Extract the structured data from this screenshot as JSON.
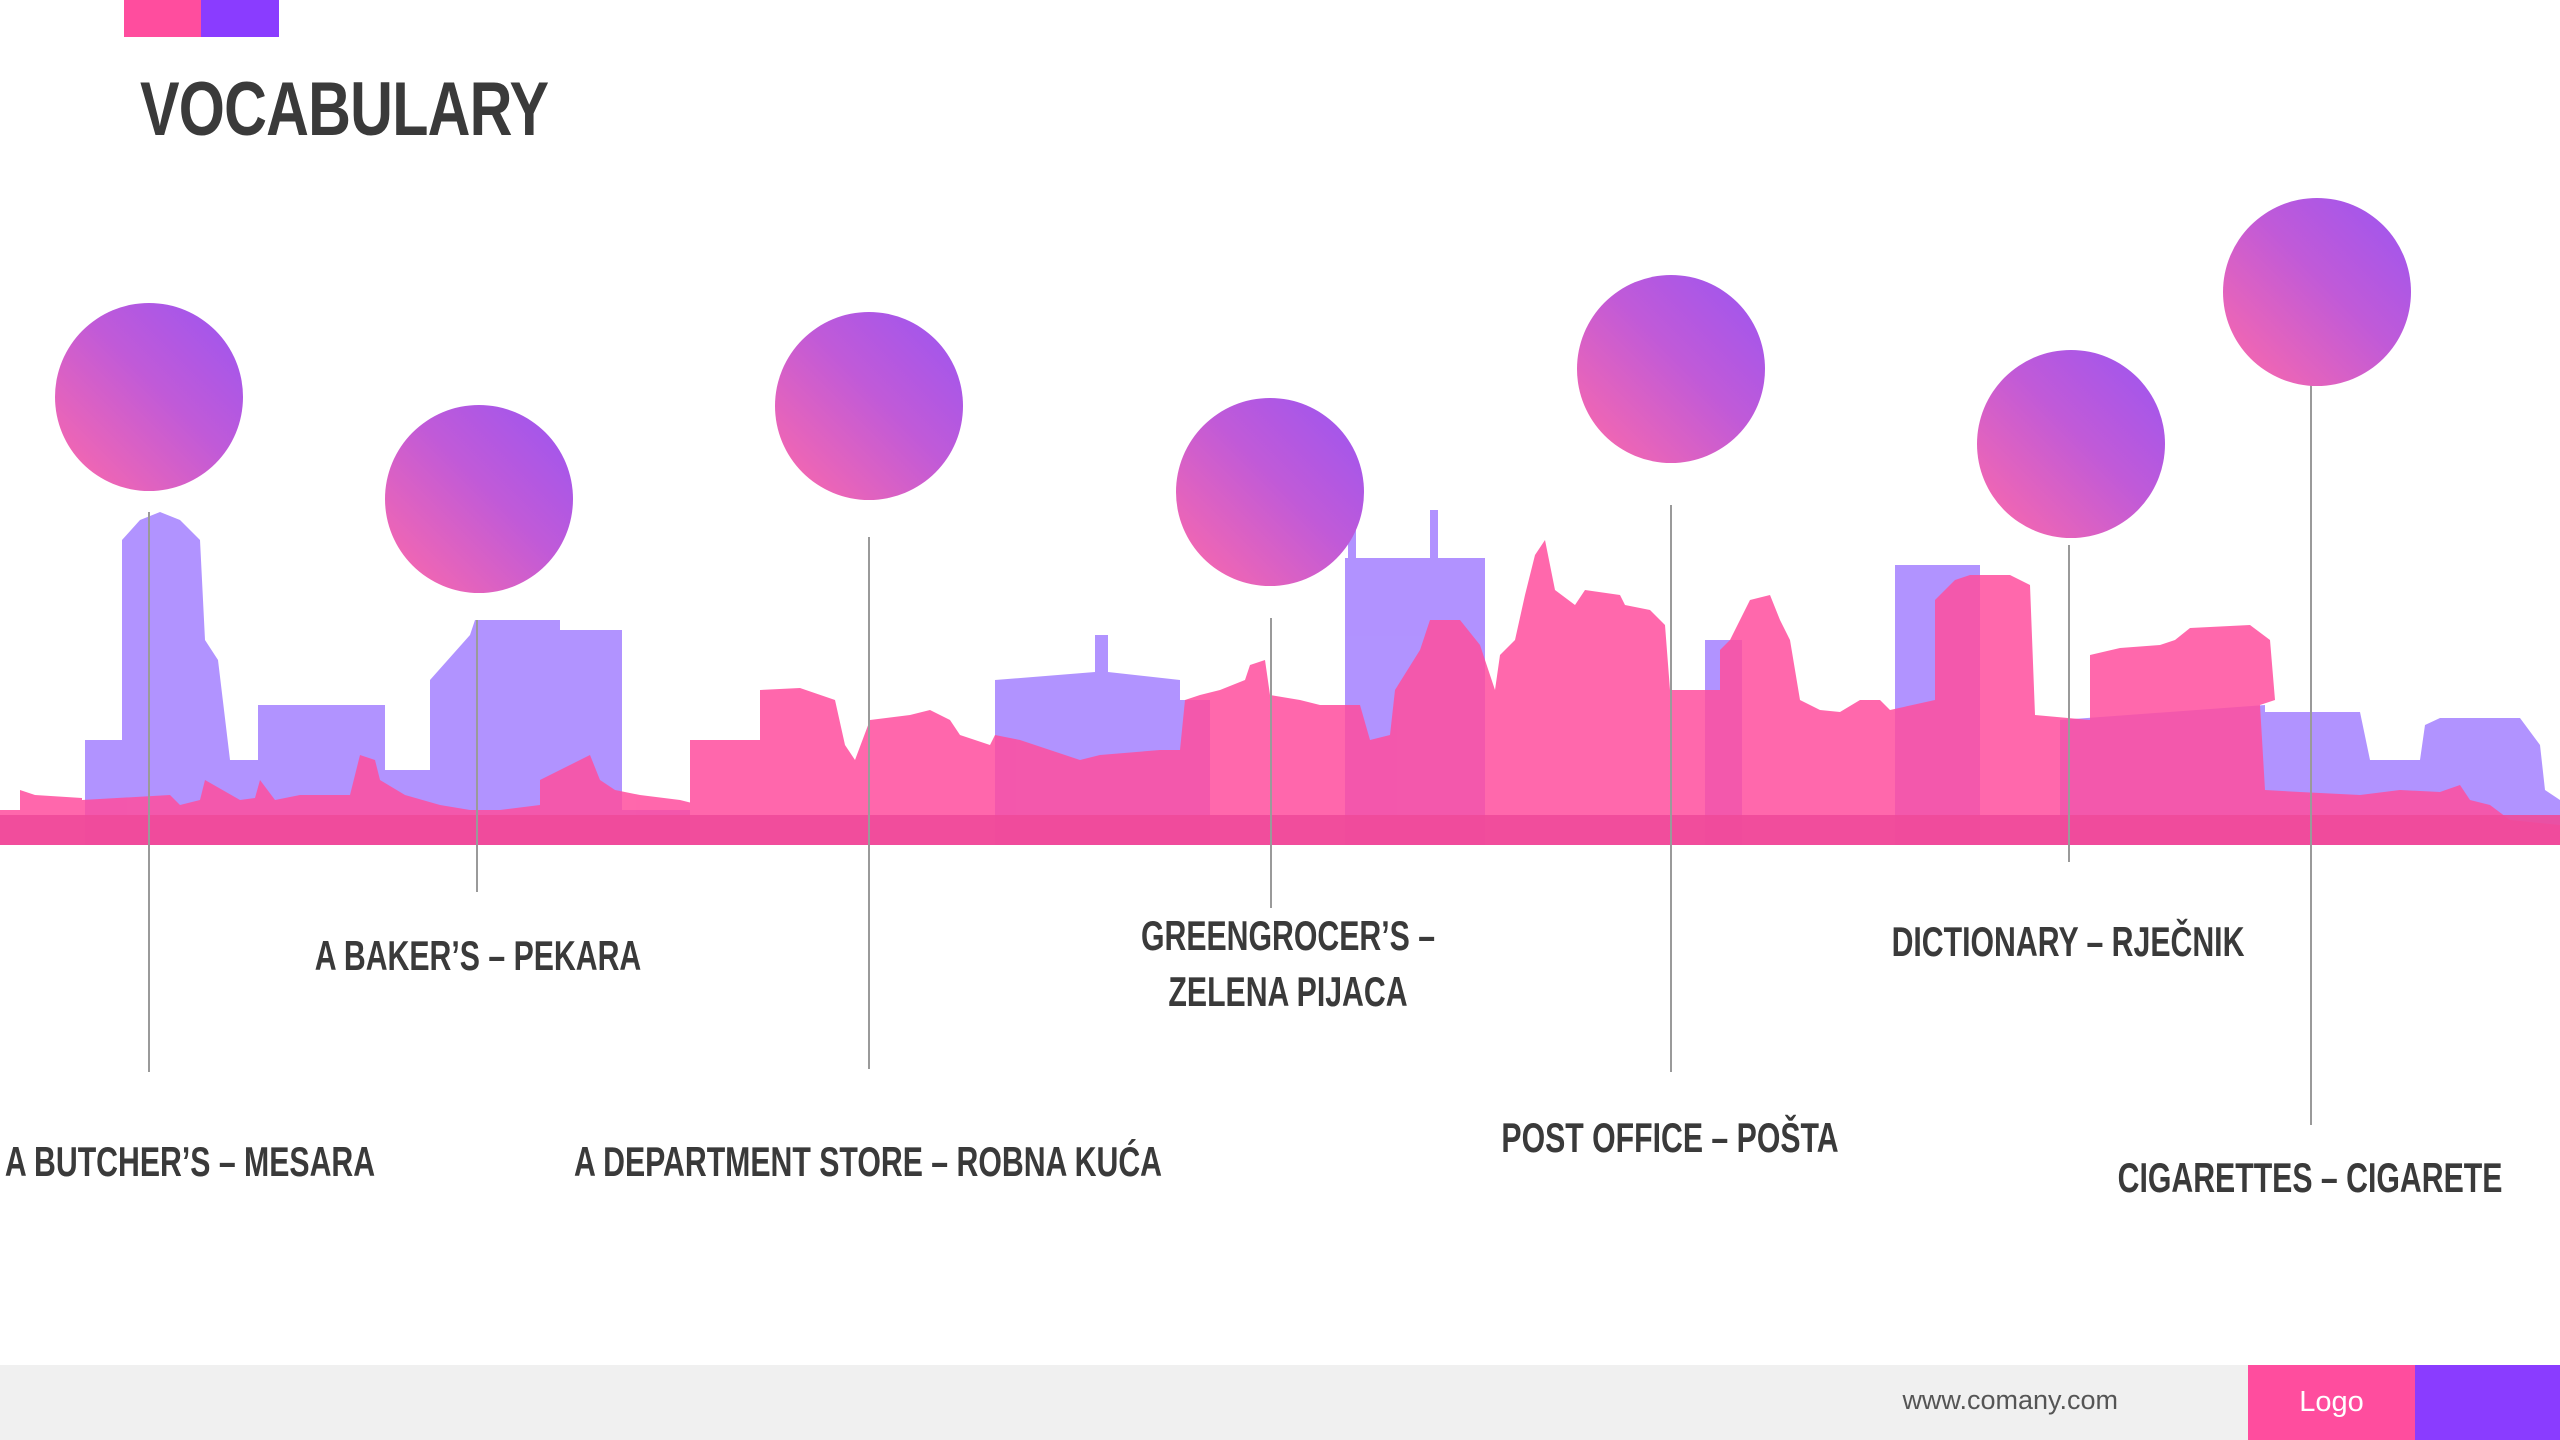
{
  "title": "VOCABULARY",
  "colors": {
    "pink": "#ff4d9e",
    "purple": "#8a3cff",
    "skyline_pink": "#ff4d9e",
    "skyline_purple": "#a07bff",
    "text": "#3a3a3a",
    "footer_bg": "#f0f0f0"
  },
  "items": [
    {
      "label": "A BUTCHER’S – MESARA"
    },
    {
      "label": "A BAKER’S – PEKARA"
    },
    {
      "label": "A DEPARTMENT STORE – ROBNA KUĆA"
    },
    {
      "label": "GREENGROCER’S – ZELENA PIJACA"
    },
    {
      "label": "POST OFFICE – POŠTA"
    },
    {
      "label": "DICTIONARY – RJEČNIK"
    },
    {
      "label": "CIGARETTES – CIGARETE"
    }
  ],
  "footer": {
    "url": "www.comany.com",
    "logo": "Logo"
  }
}
